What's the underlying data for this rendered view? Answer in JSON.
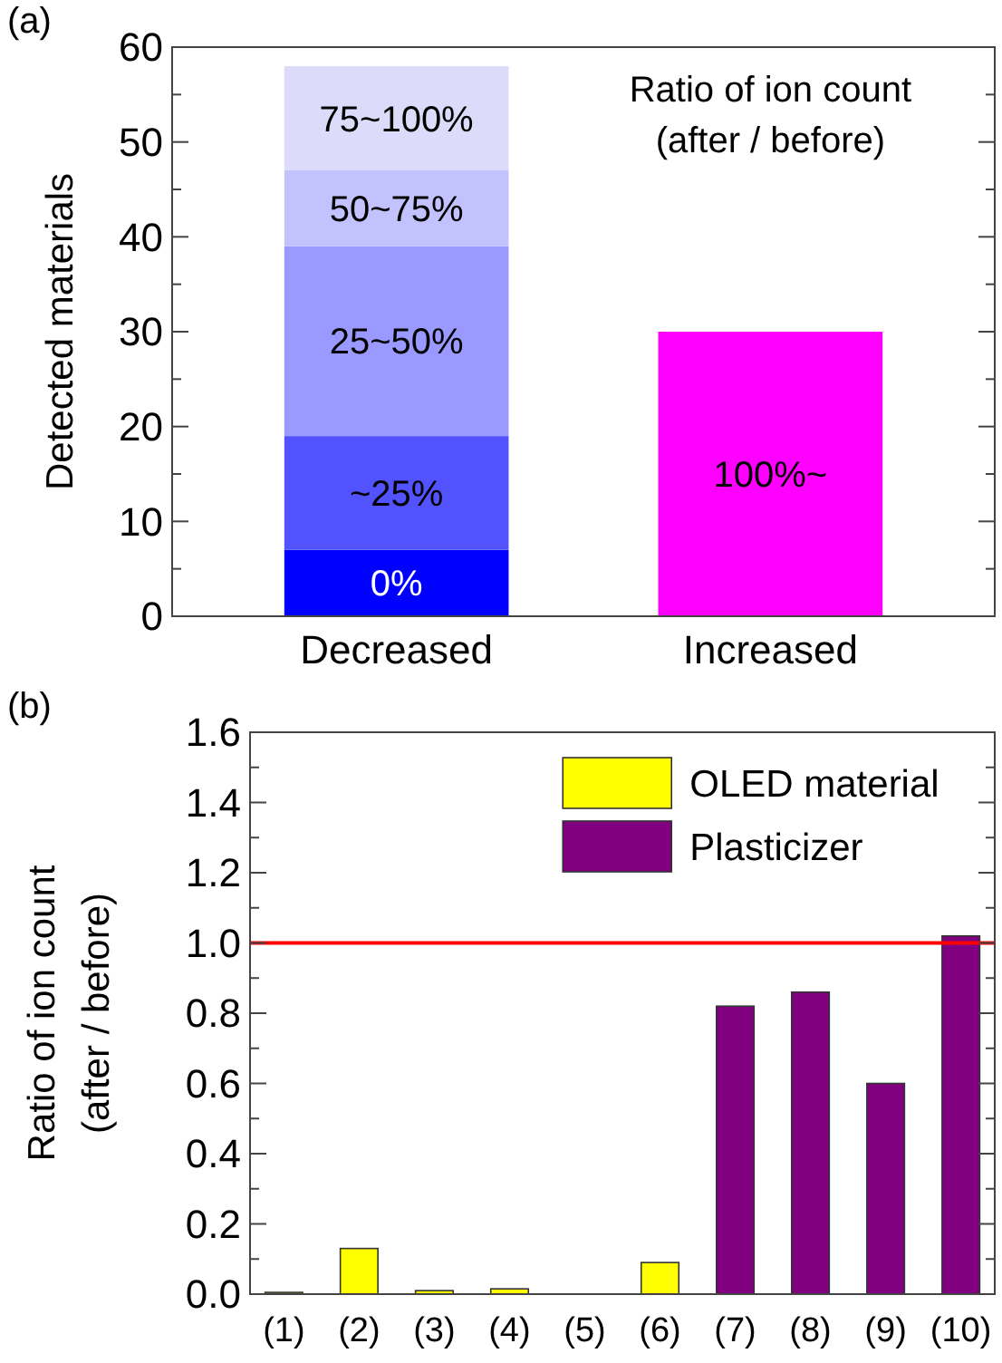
{
  "chart_data": [
    {
      "type": "bar",
      "title": "(a)",
      "ylabel": "Detected materials",
      "categories": [
        "Decreased",
        "Increased"
      ],
      "stacked": true,
      "series": [
        {
          "name": "0%",
          "color": "#0000ff",
          "values": [
            7,
            null
          ]
        },
        {
          "name": "~25%",
          "color": "#5252ff",
          "values": [
            12,
            null
          ]
        },
        {
          "name": "25~50%",
          "color": "#9999ff",
          "values": [
            20,
            null
          ]
        },
        {
          "name": "50~75%",
          "color": "#c2c2ff",
          "values": [
            8,
            null
          ]
        },
        {
          "name": "75~100%",
          "color": "#dcdcfa",
          "values": [
            11,
            null
          ]
        },
        {
          "name": "100%~",
          "color": "#ff00ff",
          "values": [
            null,
            30
          ]
        }
      ],
      "ylim": [
        0,
        60
      ],
      "yticks": [
        0,
        {
          "value": 5,
          "label": null
        },
        10,
        {
          "value": 15,
          "label": null
        },
        20,
        {
          "value": 25,
          "label": null
        },
        30,
        {
          "value": 35,
          "label": null
        },
        40,
        {
          "value": 45,
          "label": null
        },
        50,
        {
          "value": 55,
          "label": null
        },
        60
      ],
      "annotations": [
        "Ratio of ion count\n(after / before)"
      ]
    },
    {
      "type": "bar",
      "title": "(b)",
      "ylabel": "Ratio of ion count\n(after / before)",
      "categories": [
        "(1)",
        "(2)",
        "(3)",
        "(4)",
        "(5)",
        "(6)",
        "(7)",
        "(8)",
        "(9)",
        "(10)"
      ],
      "series": [
        {
          "name": "OLED material",
          "color": "#ffff00",
          "values": [
            0.005,
            0.13,
            0.01,
            0.015,
            null,
            0.09,
            null,
            null,
            null,
            null
          ]
        },
        {
          "name": "Plasticizer",
          "color": "#800080",
          "values": [
            null,
            null,
            null,
            null,
            null,
            null,
            0.82,
            0.86,
            0.6,
            1.02
          ]
        }
      ],
      "ylim": [
        0,
        1.6
      ],
      "yticks": [
        {
          "value": 0,
          "label": "0.0"
        },
        {
          "value": 0.1,
          "label": null
        },
        0.2,
        {
          "value": 0.3,
          "label": null
        },
        0.4,
        {
          "value": 0.5,
          "label": null
        },
        0.6,
        {
          "value": 0.7,
          "label": null
        },
        0.8,
        {
          "value": 0.9,
          "label": null
        },
        {
          "value": 1,
          "label": "1.0"
        },
        {
          "value": 1.1,
          "label": null
        },
        1.2,
        {
          "value": 1.3,
          "label": null
        },
        1.4,
        {
          "value": 1.5,
          "label": null
        },
        1.6
      ],
      "ref_lines": [
        {
          "axis": "y",
          "value": 1,
          "color": "#ff0000"
        }
      ],
      "legend": "top right"
    }
  ]
}
